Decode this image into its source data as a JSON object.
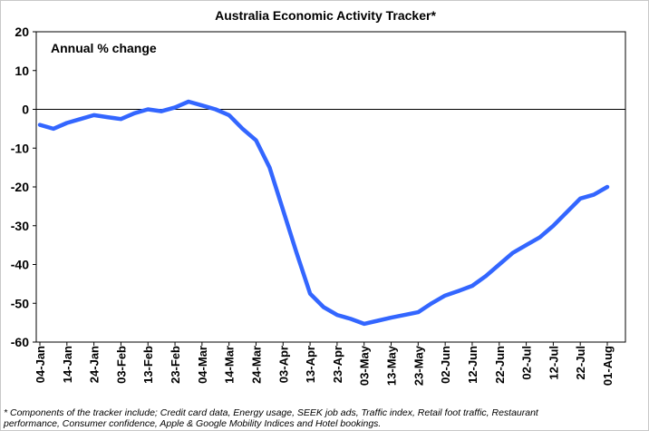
{
  "chart_data": {
    "type": "line",
    "title": "Australia Economic Activity Tracker*",
    "annotation": "Annual % change",
    "xlabel": "",
    "ylabel": "",
    "ylim": [
      -60,
      20
    ],
    "yticks": [
      20,
      10,
      0,
      -10,
      -20,
      -30,
      -40,
      -50,
      -60
    ],
    "xtick_labels": [
      "04-Jan",
      "14-Jan",
      "24-Jan",
      "03-Feb",
      "13-Feb",
      "23-Feb",
      "04-Mar",
      "14-Mar",
      "24-Mar",
      "03-Apr",
      "13-Apr",
      "23-Apr",
      "03-May",
      "13-May",
      "23-May",
      "02-Jun",
      "12-Jun",
      "22-Jun",
      "02-Jul",
      "12-Jul",
      "22-Jul",
      "01-Aug"
    ],
    "grid": false,
    "zero_line": true,
    "line_color": "#3366ff",
    "series": [
      {
        "x": [
          "2020-01-04",
          "2020-01-09",
          "2020-01-14",
          "2020-01-19",
          "2020-01-24",
          "2020-01-29",
          "2020-02-03",
          "2020-02-08",
          "2020-02-13",
          "2020-02-18",
          "2020-02-23",
          "2020-02-28",
          "2020-03-04",
          "2020-03-09",
          "2020-03-14",
          "2020-03-19",
          "2020-03-24",
          "2020-03-29",
          "2020-04-03",
          "2020-04-08",
          "2020-04-13",
          "2020-04-18",
          "2020-04-23",
          "2020-04-28",
          "2020-05-03",
          "2020-05-08",
          "2020-05-13",
          "2020-05-18",
          "2020-05-23",
          "2020-05-28",
          "2020-06-02",
          "2020-06-07",
          "2020-06-12",
          "2020-06-17",
          "2020-06-22",
          "2020-06-27",
          "2020-07-02",
          "2020-07-07",
          "2020-07-12",
          "2020-07-17",
          "2020-07-22",
          "2020-07-27",
          "2020-08-01"
        ],
        "values": [
          -4,
          -5,
          -3.5,
          -2.5,
          -1.5,
          -2,
          -2.5,
          -1,
          0,
          -0.5,
          0.5,
          2,
          1,
          0,
          -1.5,
          -5,
          -8,
          -15,
          -26,
          -37,
          -47.5,
          -51,
          -53,
          -54,
          -55.3,
          -54.5,
          -53.7,
          -53,
          -52.3,
          -50,
          -48,
          -46.8,
          -45.5,
          -43,
          -40,
          -37,
          -35,
          -33,
          -30,
          -26.5,
          -23,
          -22,
          -20
        ]
      }
    ]
  },
  "footnote": {
    "line1": "* Components of the tracker include; Credit card data, Energy usage, SEEK job ads, Traffic index, Retail foot traffic, Restaurant",
    "line2": "performance, Consumer confidence, Apple & Google Mobility Indices and Hotel bookings."
  }
}
